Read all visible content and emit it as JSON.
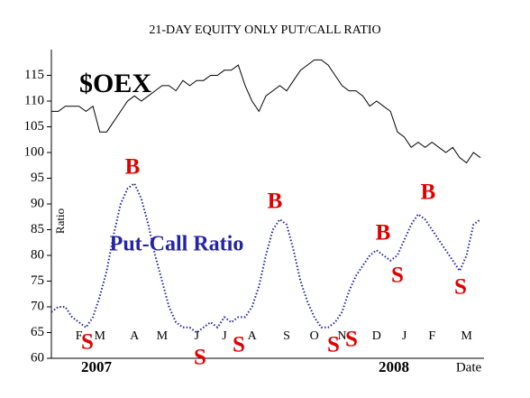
{
  "chart_data": {
    "type": "line",
    "title": "21-DAY EQUITY ONLY PUT/CALL RATIO",
    "y_label": "Ratio",
    "categories": [
      null,
      null,
      null,
      null,
      "F",
      null,
      null,
      "M",
      null,
      null,
      null,
      null,
      "A",
      null,
      null,
      null,
      "M",
      null,
      null,
      null,
      null,
      "J",
      null,
      null,
      null,
      "J",
      null,
      null,
      null,
      "A",
      null,
      null,
      null,
      null,
      "S",
      null,
      null,
      null,
      "O",
      null,
      null,
      null,
      "N",
      null,
      null,
      null,
      null,
      "D",
      null,
      null,
      null,
      "J",
      null,
      null,
      null,
      "F",
      null,
      null,
      null,
      null,
      "M",
      null,
      null
    ],
    "series": [
      {
        "name": "$OEX",
        "color": "#000000",
        "dashed": false,
        "values": [
          108,
          108,
          109,
          109,
          109,
          108,
          109,
          104,
          104,
          106,
          108,
          110,
          111,
          110,
          111,
          112,
          113,
          113,
          112,
          114,
          113,
          114,
          114,
          115,
          115,
          116,
          116,
          117,
          113,
          110,
          108,
          111,
          112,
          113,
          112,
          114,
          116,
          117,
          118,
          118,
          117,
          115,
          113,
          112,
          112,
          111,
          109,
          110,
          109,
          108,
          104,
          103,
          101,
          102,
          101,
          102,
          101,
          100,
          101,
          99,
          98,
          100,
          99
        ]
      },
      {
        "name": "Put-Call Ratio",
        "color": "#2323a8",
        "dashed": true,
        "values": [
          69,
          70,
          70,
          68,
          67,
          66,
          68,
          72,
          77,
          84,
          90,
          93,
          94,
          91,
          86,
          80,
          75,
          70,
          67,
          66,
          66,
          65,
          66,
          67,
          66,
          68,
          67,
          68,
          68,
          70,
          74,
          80,
          85,
          87,
          86,
          81,
          75,
          71,
          68,
          66,
          66,
          67,
          69,
          73,
          76,
          78,
          80,
          81,
          80,
          79,
          80,
          83,
          86,
          88,
          87,
          85,
          83,
          81,
          79,
          77,
          80,
          86,
          87
        ]
      }
    ],
    "annotations": [
      {
        "text": "B",
        "color": "#e00000"
      },
      {
        "text": "B",
        "color": "#e00000"
      },
      {
        "text": "B",
        "color": "#e00000"
      },
      {
        "text": "B",
        "color": "#e00000"
      },
      {
        "text": "S",
        "color": "#e00000"
      },
      {
        "text": "S",
        "color": "#e00000"
      },
      {
        "text": "S",
        "color": "#e00000"
      },
      {
        "text": "S",
        "color": "#e00000"
      },
      {
        "text": "S",
        "color": "#e00000"
      },
      {
        "text": "S",
        "color": "#e00000"
      },
      {
        "text": "S",
        "color": "#e00000"
      },
      {
        "text": "2007",
        "color": "#000000"
      },
      {
        "text": "2008",
        "color": "#000000"
      },
      {
        "text": "Date",
        "color": "#000000"
      }
    ],
    "ylim": [
      60,
      120
    ],
    "yticks": [
      60,
      65,
      70,
      75,
      80,
      85,
      90,
      95,
      100,
      105,
      110,
      115
    ]
  }
}
